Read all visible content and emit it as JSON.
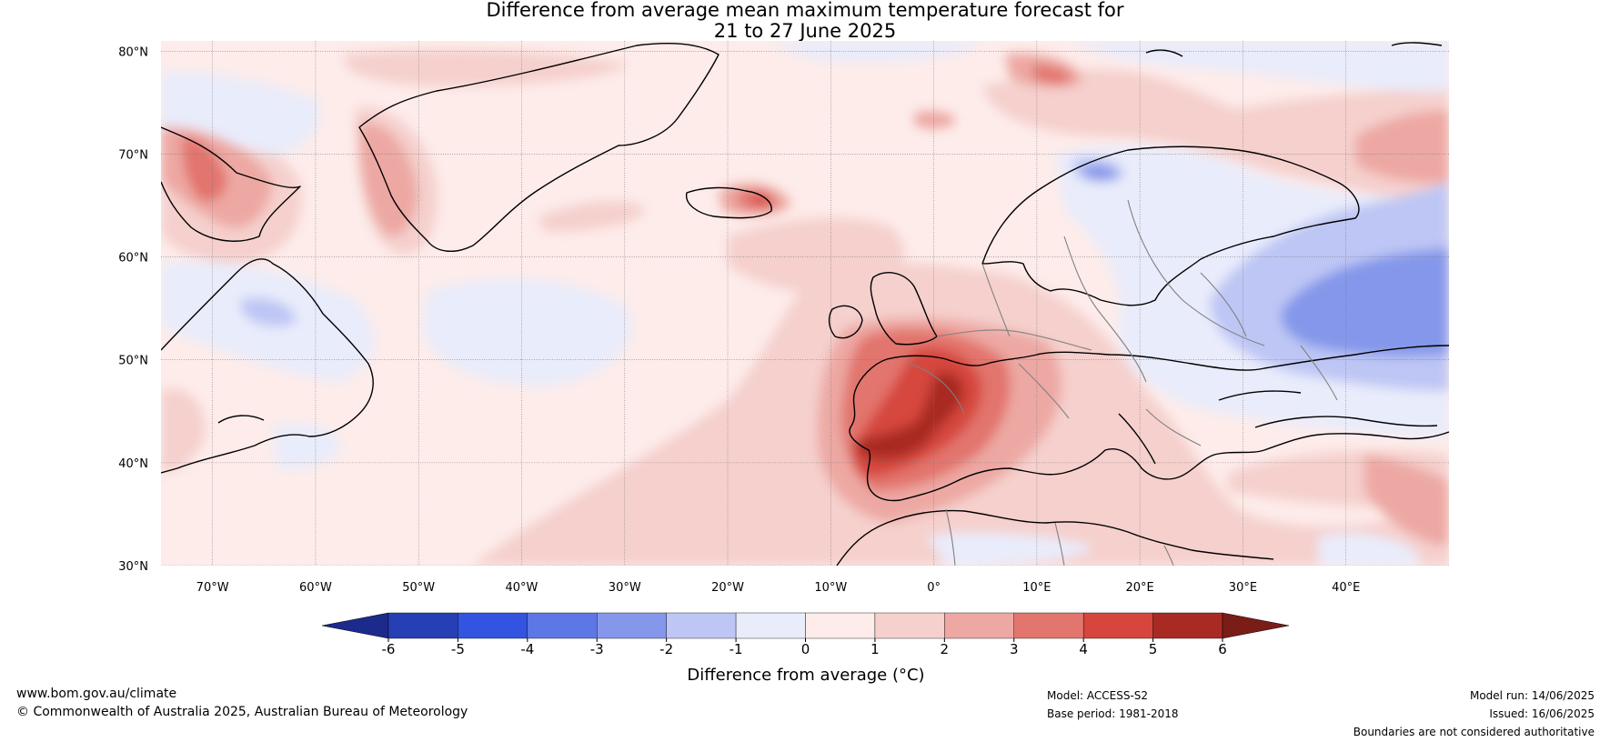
{
  "title": {
    "line1": "Difference from average mean maximum temperature forecast for",
    "line2": "21 to 27 June 2025"
  },
  "map": {
    "lat_labels": [
      "80°N",
      "70°N",
      "60°N",
      "50°N",
      "40°N",
      "30°N"
    ],
    "lon_labels": [
      "70°W",
      "60°W",
      "50°W",
      "40°W",
      "30°W",
      "20°W",
      "10°W",
      "0°",
      "10°E",
      "20°E",
      "30°E",
      "40°E"
    ],
    "extent": {
      "lon_min": -75,
      "lon_max": 50,
      "lat_min": 30,
      "lat_max": 81
    },
    "land_outline_color": "#000000",
    "borders_color": "#808080"
  },
  "colorbar": {
    "tick_labels": [
      "-6",
      "-5",
      "-4",
      "-3",
      "-2",
      "-1",
      "0",
      "1",
      "2",
      "3",
      "4",
      "5",
      "6"
    ],
    "colors": [
      "#263fb5",
      "#3354e0",
      "#5e77e6",
      "#8497ea",
      "#bdc6f4",
      "#e9ecfb",
      "#fdecea",
      "#f5d0cd",
      "#eda8a3",
      "#e2756d",
      "#d6463d",
      "#a92a23"
    ],
    "under_color": "#1c2a8c",
    "over_color": "#7a1d17",
    "label": "Difference from average (°C)"
  },
  "footer": {
    "url": "www.bom.gov.au/climate",
    "copyright": "© Commonwealth of Australia 2025, Australian Bureau of Meteorology",
    "model": "Model: ACCESS-S2",
    "base_period": "Base period: 1981-2018",
    "model_run": "Model run: 14/06/2025",
    "issued": "Issued: 16/06/2025",
    "disclaimer": "Boundaries are not considered authoritative"
  }
}
